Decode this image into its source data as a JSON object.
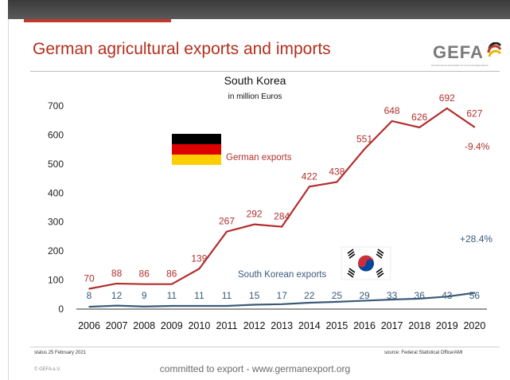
{
  "slide": {
    "title": "German agricultural exports and imports",
    "logo": "GEFA",
    "logo_tagline": "German Export Association for Food and Agriproducts",
    "status": "status 25 February 2021",
    "source": "source: Federal Statistical Office/AMI",
    "copyright": "© GEFA e.V.",
    "slogan": "committed to export - www.germanexport.org"
  },
  "chart_data": {
    "type": "line",
    "title": "South Korea",
    "subtitle": "in million Euros",
    "x": [
      "2006",
      "2007",
      "2008",
      "2009",
      "2010",
      "2011",
      "2012",
      "2013",
      "2014",
      "2015",
      "2016",
      "2017",
      "2018",
      "2019",
      "2020"
    ],
    "yticks": [
      "0",
      "100",
      "200",
      "300",
      "400",
      "500",
      "600",
      "700"
    ],
    "ylim": [
      0,
      700
    ],
    "grid": false,
    "series": [
      {
        "name": "German exports",
        "color": "#b22f2f",
        "values": [
          70,
          88,
          86,
          86,
          139,
          267,
          292,
          284,
          422,
          438,
          551,
          648,
          626,
          692,
          627
        ],
        "change": "-9.4%"
      },
      {
        "name": "South Korean exports",
        "color": "#3a5a7a",
        "values": [
          8,
          12,
          9,
          11,
          11,
          11,
          15,
          17,
          22,
          25,
          29,
          33,
          36,
          43,
          56
        ],
        "change": "+28.4%"
      }
    ],
    "icons": [
      "german-flag-icon",
      "south-korean-flag-icon"
    ]
  }
}
